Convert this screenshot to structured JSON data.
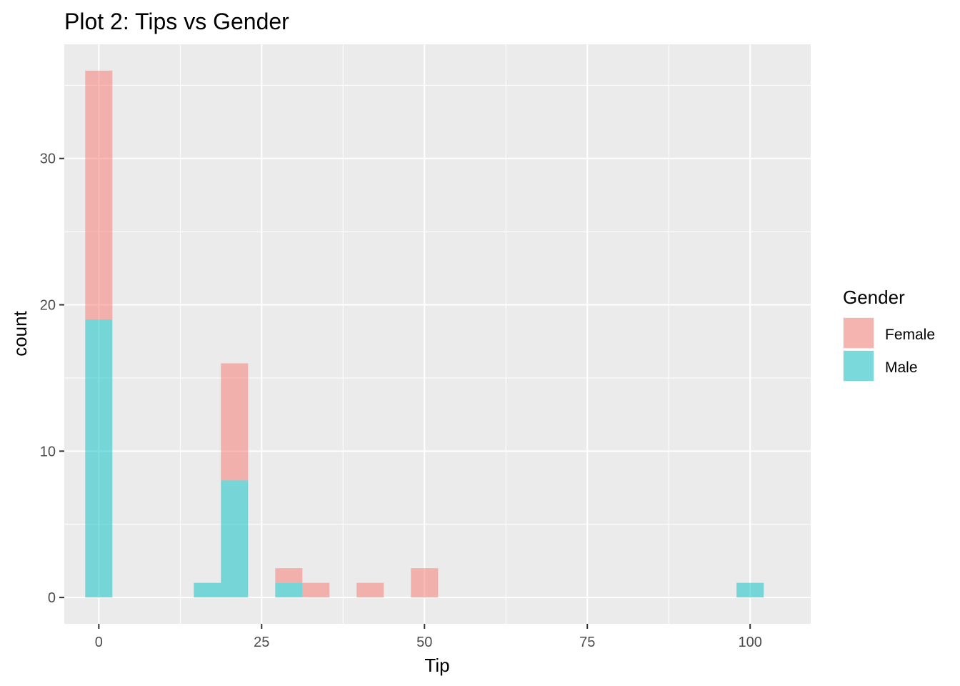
{
  "chart_data": {
    "type": "bar",
    "stacked": true,
    "title": "Plot 2: Tips vs Gender",
    "xlabel": "Tip",
    "ylabel": "count",
    "xlim": [
      -5.3,
      109.3
    ],
    "ylim": [
      -1.8,
      37.8
    ],
    "x_ticks": [
      0,
      25,
      50,
      75,
      100
    ],
    "y_ticks": [
      0,
      10,
      20,
      30
    ],
    "bin_width": 4.17,
    "bin_centers": [
      0,
      16.67,
      20.83,
      29.17,
      33.33,
      41.67,
      50,
      100
    ],
    "series": [
      {
        "name": "Male",
        "color": "#00BFC4",
        "values": [
          19,
          1,
          8,
          1,
          0,
          0,
          0,
          1
        ]
      },
      {
        "name": "Female",
        "color": "#F8766D",
        "values": [
          17,
          0,
          8,
          1,
          1,
          1,
          2,
          0
        ]
      }
    ],
    "legend": {
      "title": "Gender",
      "position": "right",
      "entries": [
        {
          "label": "Female",
          "color": "#F8766D"
        },
        {
          "label": "Male",
          "color": "#00BFC4"
        }
      ]
    },
    "bar_opacity": 0.5,
    "grid": true,
    "panel_background": "#EBEBEB",
    "grid_color": "#FFFFFF"
  }
}
